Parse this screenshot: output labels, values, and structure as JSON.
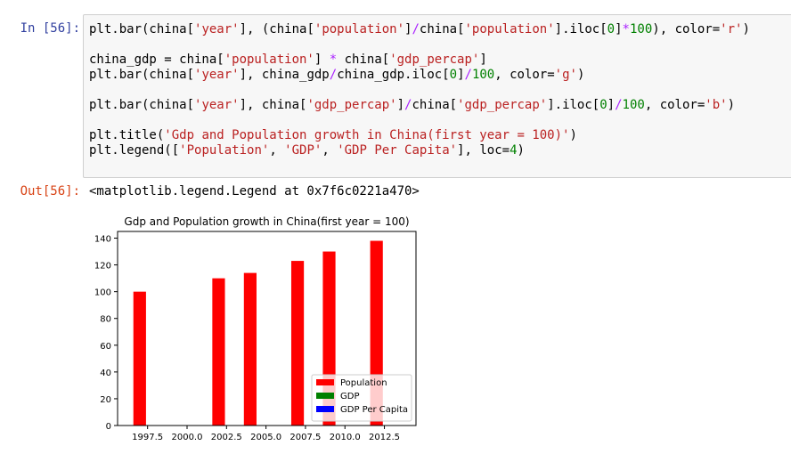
{
  "cell": {
    "in_prompt": "In [56]:",
    "out_prompt": "Out[56]:",
    "code_lines": [
      [
        [
          "plt.bar(china[",
          ""
        ],
        [
          "'year'",
          "s"
        ],
        [
          "], (china[",
          ""
        ],
        [
          "'population'",
          "s"
        ],
        [
          "]",
          ""
        ],
        [
          "/",
          "o"
        ],
        [
          "china[",
          ""
        ],
        [
          "'population'",
          "s"
        ],
        [
          "].iloc[",
          ""
        ],
        [
          "0",
          "n"
        ],
        [
          "]",
          ""
        ],
        [
          "*",
          "o"
        ],
        [
          "100",
          "n"
        ],
        [
          "), color=",
          ""
        ],
        [
          "'r'",
          "s"
        ],
        [
          ")",
          ""
        ]
      ],
      [
        [
          "china_gdp = china[",
          ""
        ],
        [
          "'population'",
          "s"
        ],
        [
          "] ",
          ""
        ],
        [
          "*",
          "o"
        ],
        [
          " china[",
          ""
        ],
        [
          "'gdp_percap'",
          "s"
        ],
        [
          "]",
          ""
        ]
      ],
      [
        [
          "plt.bar(china[",
          ""
        ],
        [
          "'year'",
          "s"
        ],
        [
          "], china_gdp",
          ""
        ],
        [
          "/",
          "o"
        ],
        [
          "china_gdp.iloc[",
          ""
        ],
        [
          "0",
          "n"
        ],
        [
          "]",
          ""
        ],
        [
          "/",
          "o"
        ],
        [
          "100",
          "n"
        ],
        [
          ", color=",
          ""
        ],
        [
          "'g'",
          "s"
        ],
        [
          ")",
          ""
        ]
      ],
      [
        [
          "plt.bar(china[",
          ""
        ],
        [
          "'year'",
          "s"
        ],
        [
          "], china[",
          ""
        ],
        [
          "'gdp_percap'",
          "s"
        ],
        [
          "]",
          ""
        ],
        [
          "/",
          "o"
        ],
        [
          "china[",
          ""
        ],
        [
          "'gdp_percap'",
          "s"
        ],
        [
          "].iloc[",
          ""
        ],
        [
          "0",
          "n"
        ],
        [
          "]",
          ""
        ],
        [
          "/",
          "o"
        ],
        [
          "100",
          "n"
        ],
        [
          ", color=",
          ""
        ],
        [
          "'b'",
          "s"
        ],
        [
          ")",
          ""
        ]
      ],
      [
        [
          "plt.title(",
          ""
        ],
        [
          "'Gdp and Population growth in China(first year = 100)'",
          "s"
        ],
        [
          ")",
          ""
        ]
      ],
      [
        [
          "plt.legend([",
          ""
        ],
        [
          "'Population'",
          "s"
        ],
        [
          ", ",
          ""
        ],
        [
          "'GDP'",
          "s"
        ],
        [
          ", ",
          ""
        ],
        [
          "'GDP Per Capita'",
          "s"
        ],
        [
          "], loc=",
          ""
        ],
        [
          "4",
          "n"
        ],
        [
          ")",
          ""
        ]
      ]
    ],
    "output_text": "<matplotlib.legend.Legend at 0x7f6c0221a470>"
  },
  "colors": {
    "population": "#ff0000",
    "gdp": "#008000",
    "gdp_per_capita": "#0000ff"
  },
  "chart_data": {
    "type": "bar",
    "title": "Gdp and Population growth in China(first year = 100)",
    "xlabel": "",
    "ylabel": "",
    "xlim": [
      1995.6,
      2014.5
    ],
    "ylim": [
      0,
      145
    ],
    "xticks": [
      "1997.5",
      "2000.0",
      "2002.5",
      "2005.0",
      "2007.5",
      "2010.0",
      "2012.5"
    ],
    "yticks": [
      "0",
      "20",
      "40",
      "60",
      "80",
      "100",
      "120",
      "140"
    ],
    "bar_width_years": 0.8,
    "series": [
      {
        "name": "Population",
        "x": [
          1997,
          2002,
          2004,
          2007,
          2009,
          2012
        ],
        "values": [
          100,
          110,
          114,
          123,
          130,
          138
        ]
      }
    ],
    "legend": {
      "location": "lower-right",
      "entries": [
        "Population",
        "GDP",
        "GDP Per Capita"
      ]
    },
    "grid": false
  }
}
